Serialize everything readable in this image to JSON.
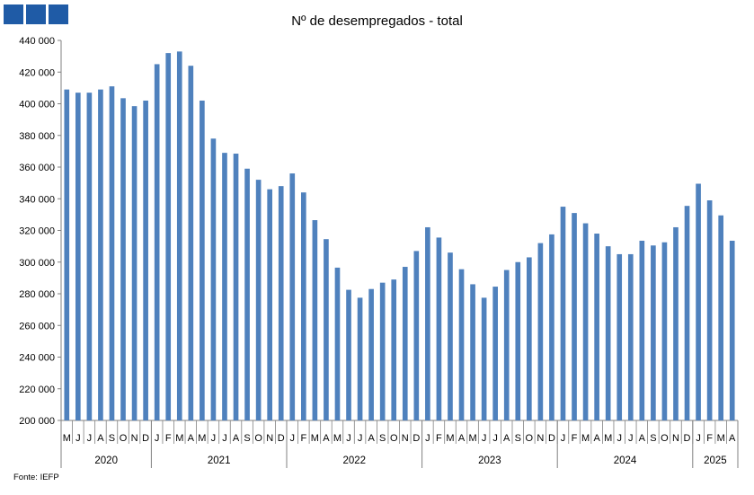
{
  "header": {
    "title": "Nº de desempregados - total",
    "source": "Fonte:  IEFP"
  },
  "colors": {
    "bar": "#4f81bd",
    "logo": "#1f5ba6",
    "axis": "#808080"
  },
  "chart_data": {
    "type": "bar",
    "title": "Nº de desempregados - total",
    "ylim": [
      200000,
      440000
    ],
    "y_ticks": [
      "200 000",
      "220 000",
      "240 000",
      "260 000",
      "280 000",
      "300 000",
      "320 000",
      "340 000",
      "360 000",
      "380 000",
      "400 000",
      "420 000",
      "440 000"
    ],
    "grid": false,
    "months": [
      "M",
      "J",
      "J",
      "A",
      "S",
      "O",
      "N",
      "D",
      "J",
      "F",
      "M",
      "A",
      "M",
      "J",
      "J",
      "A",
      "S",
      "O",
      "N",
      "D",
      "J",
      "F",
      "M",
      "A",
      "M",
      "J",
      "J",
      "A",
      "S",
      "O",
      "N",
      "D",
      "J",
      "F",
      "M",
      "A",
      "M",
      "J",
      "J",
      "A",
      "S",
      "O",
      "N",
      "D",
      "J",
      "F",
      "M",
      "A",
      "M",
      "J",
      "J",
      "A",
      "S",
      "O",
      "N",
      "D",
      "J",
      "F",
      "M",
      "A"
    ],
    "years": [
      {
        "label": "2020",
        "count": 8
      },
      {
        "label": "2021",
        "count": 12
      },
      {
        "label": "2022",
        "count": 12
      },
      {
        "label": "2023",
        "count": 12
      },
      {
        "label": "2024",
        "count": 12
      },
      {
        "label": "2025",
        "count": 4
      }
    ],
    "values": [
      409000,
      407000,
      407000,
      409000,
      411000,
      403500,
      398500,
      402000,
      425000,
      432000,
      433000,
      424000,
      402000,
      378000,
      369000,
      368500,
      359000,
      352000,
      346000,
      348000,
      356000,
      344000,
      326500,
      314500,
      296500,
      282500,
      277500,
      283000,
      287000,
      289000,
      297000,
      307000,
      322000,
      315500,
      306000,
      295500,
      286000,
      277500,
      284500,
      295000,
      300000,
      303000,
      312000,
      317500,
      335000,
      331000,
      324500,
      318000,
      310000,
      305000,
      305000,
      313500,
      310500,
      312500,
      322000,
      335500,
      349500,
      339000,
      329500,
      313500
    ]
  }
}
